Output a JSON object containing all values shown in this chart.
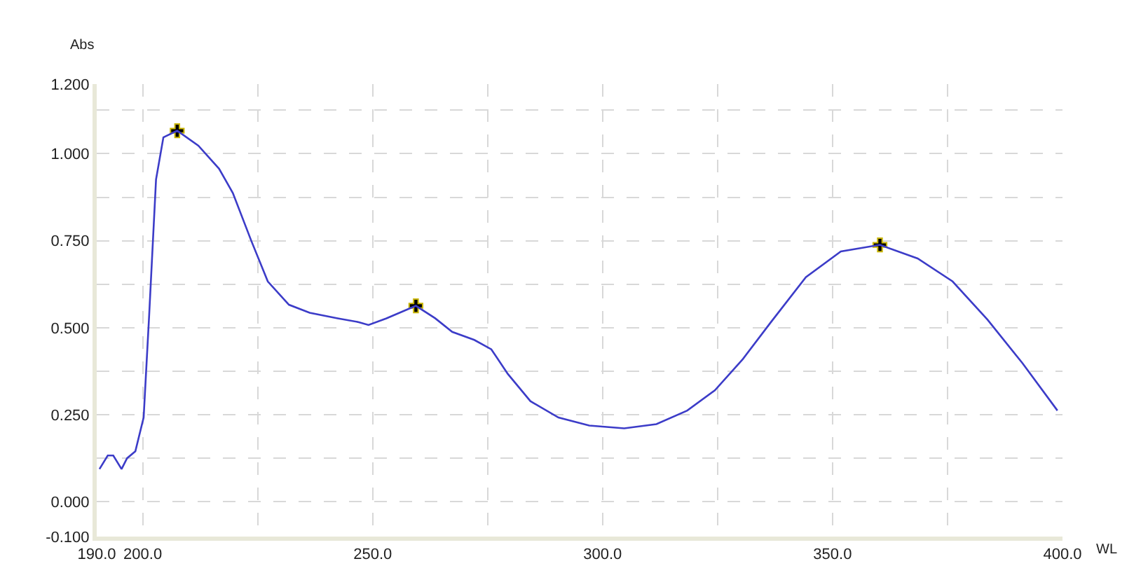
{
  "chart_data": {
    "type": "line",
    "xlabel": "WL",
    "ylabel": "Abs",
    "xlim": [
      190,
      400
    ],
    "ylim": [
      -0.1,
      1.2
    ],
    "xticks": [
      {
        "value": 190,
        "label": "190.0"
      },
      {
        "value": 200,
        "label": "200.0"
      },
      {
        "value": 225,
        "label": null
      },
      {
        "value": 250,
        "label": "250.0"
      },
      {
        "value": 275,
        "label": null
      },
      {
        "value": 300,
        "label": "300.0"
      },
      {
        "value": 325,
        "label": null
      },
      {
        "value": 350,
        "label": "350.0"
      },
      {
        "value": 375,
        "label": null
      },
      {
        "value": 400,
        "label": "400.0"
      }
    ],
    "yticks": [
      {
        "value": -0.1,
        "label": "-0.100"
      },
      {
        "value": 0,
        "label": "0.000"
      },
      {
        "value": 0.125,
        "label": null
      },
      {
        "value": 0.25,
        "label": "0.250"
      },
      {
        "value": 0.375,
        "label": null
      },
      {
        "value": 0.5,
        "label": "0.500"
      },
      {
        "value": 0.625,
        "label": null
      },
      {
        "value": 0.75,
        "label": "0.750"
      },
      {
        "value": 0.875,
        "label": null
      },
      {
        "value": 1.0,
        "label": "1.000"
      },
      {
        "value": 1.125,
        "label": null
      },
      {
        "value": 1.2,
        "label": "1.200"
      }
    ],
    "grid": true,
    "line_style": "solid",
    "series": [
      {
        "color": "#3c3cc8",
        "marker": "none",
        "x": [
          190.6,
          192.4,
          193.6,
          195.4,
          196.6,
          198.4,
          200.2,
          201.4,
          202.9,
          204.5,
          207.5,
          212.1,
          216.6,
          219.6,
          223.6,
          227.2,
          231.8,
          236.3,
          242.4,
          247.0,
          249.1,
          253.0,
          259.4,
          263.6,
          267.3,
          272.1,
          275.8,
          279.4,
          284.3,
          290.4,
          297.1,
          304.7,
          311.7,
          318.4,
          324.4,
          330.5,
          336.6,
          344.2,
          351.8,
          360.3,
          368.5,
          376.1,
          383.7,
          391.3,
          398.9
        ],
        "values": [
          0.094,
          0.133,
          0.133,
          0.094,
          0.125,
          0.145,
          0.242,
          0.535,
          0.926,
          1.047,
          1.066,
          1.023,
          0.957,
          0.887,
          0.75,
          0.633,
          0.566,
          0.543,
          0.527,
          0.516,
          0.508,
          0.527,
          0.563,
          0.527,
          0.488,
          0.465,
          0.438,
          0.367,
          0.289,
          0.242,
          0.219,
          0.211,
          0.223,
          0.262,
          0.32,
          0.41,
          0.516,
          0.645,
          0.719,
          0.738,
          0.699,
          0.633,
          0.523,
          0.398,
          0.262
        ]
      },
      {
        "type": "scatter",
        "color": "#000000",
        "marker": "cross",
        "x": [
          207.5,
          259.4,
          360.3
        ],
        "values": [
          1.066,
          0.563,
          0.738
        ]
      }
    ]
  }
}
